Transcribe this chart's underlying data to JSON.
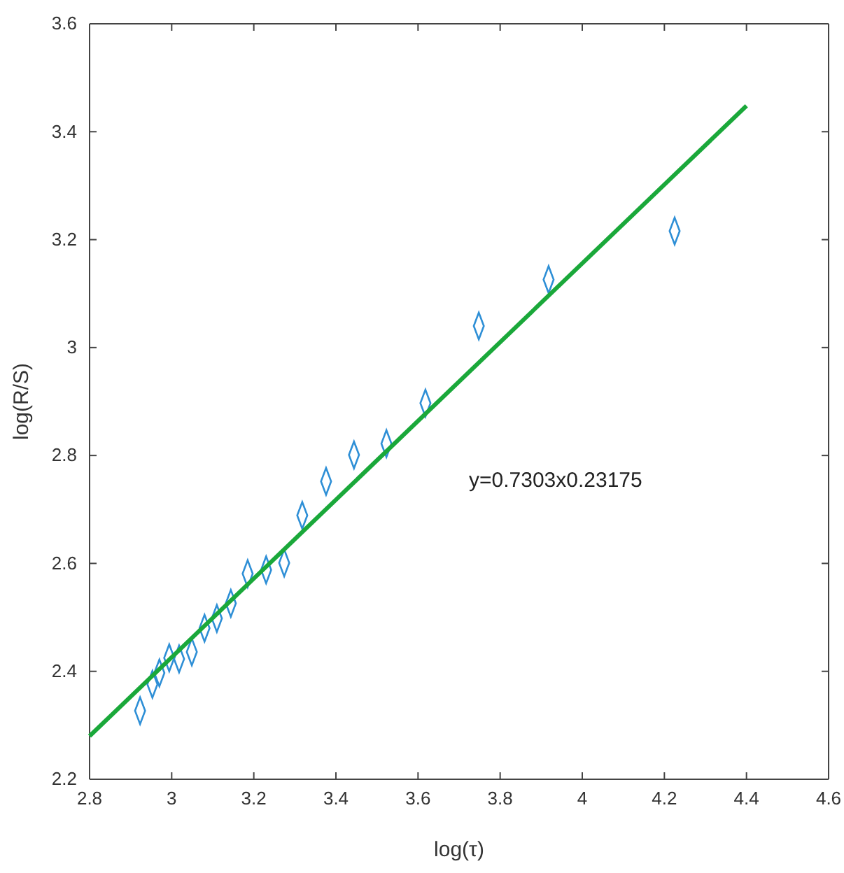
{
  "chart_data": {
    "type": "scatter",
    "xlabel": "log(τ)",
    "ylabel": "log(R/S)",
    "xlim": [
      2.8,
      4.6
    ],
    "ylim": [
      2.2,
      3.6
    ],
    "xticks": [
      2.8,
      3,
      3.2,
      3.4,
      3.6,
      3.8,
      4,
      4.2,
      4.4,
      4.6
    ],
    "yticks": [
      2.2,
      2.4,
      2.6,
      2.8,
      3,
      3.2,
      3.4,
      3.6
    ],
    "grid": false,
    "marker": "diamond",
    "annotations": [
      "y=0.7303x0.23175"
    ],
    "series": [
      {
        "color": "#2e8fd6",
        "x": [
          2.923,
          2.953,
          2.97,
          2.994,
          3.018,
          3.049,
          3.08,
          3.11,
          3.144,
          3.185,
          3.23,
          3.274,
          3.318,
          3.376,
          3.444,
          3.523,
          3.618,
          3.748,
          3.918,
          4.225
        ],
        "values": [
          2.327,
          2.376,
          2.397,
          2.425,
          2.423,
          2.436,
          2.48,
          2.498,
          2.526,
          2.581,
          2.588,
          2.601,
          2.689,
          2.752,
          2.801,
          2.822,
          2.897,
          3.04,
          3.126,
          3.216
        ]
      },
      {
        "type": "line",
        "color": "#1aa83a",
        "line_style": "solid",
        "marker": "none",
        "x": [
          2.8,
          4.4
        ],
        "values": [
          2.28,
          3.448
        ]
      }
    ]
  }
}
